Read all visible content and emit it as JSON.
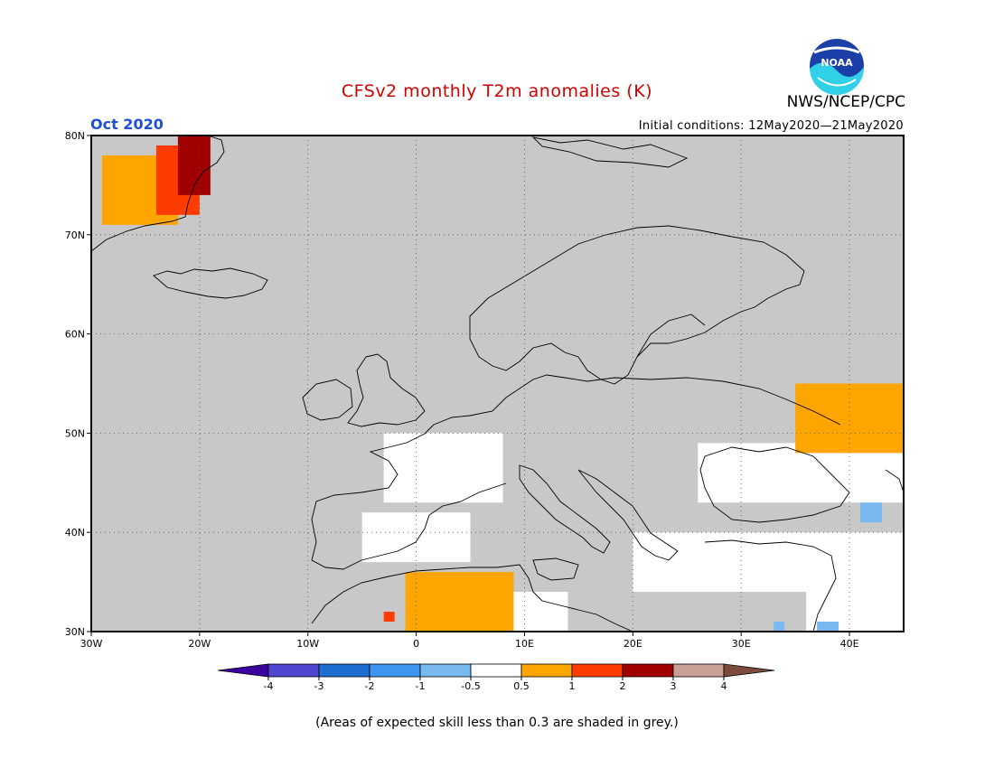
{
  "header": {
    "title": "CFSv2 monthly T2m anomalies (K)",
    "agency": "NWS/NCEP/CPC",
    "logo_text": "NOAA",
    "month": "Oct 2020",
    "initial_conditions": "Initial conditions: 12May2020—21May2020"
  },
  "map": {
    "region": "Europe",
    "lon_range": [
      -30,
      45
    ],
    "lat_range": [
      30,
      80
    ],
    "lon_ticks": [
      {
        "value": -30,
        "label": "30W"
      },
      {
        "value": -20,
        "label": "20W"
      },
      {
        "value": -10,
        "label": "10W"
      },
      {
        "value": 0,
        "label": "0"
      },
      {
        "value": 10,
        "label": "10E"
      },
      {
        "value": 20,
        "label": "20E"
      },
      {
        "value": 30,
        "label": "30E"
      },
      {
        "value": 40,
        "label": "40E"
      }
    ],
    "lat_ticks": [
      {
        "value": 30,
        "label": "30N"
      },
      {
        "value": 40,
        "label": "40N"
      },
      {
        "value": 50,
        "label": "50N"
      },
      {
        "value": 60,
        "label": "60N"
      },
      {
        "value": 70,
        "label": "70N"
      },
      {
        "value": 80,
        "label": "80N"
      }
    ],
    "low_skill_color": "#c8c8c8",
    "anomaly_regions": [
      {
        "name": "greenland-orange",
        "category": "0.5 to 1",
        "color": "#ffa500",
        "lon": [
          -29,
          -22
        ],
        "lat": [
          71,
          78
        ]
      },
      {
        "name": "greenland-red",
        "category": "1 to 2",
        "color": "#ff3c00",
        "lon": [
          -24,
          -20
        ],
        "lat": [
          72,
          79
        ]
      },
      {
        "name": "greenland-darkred",
        "category": "2 to 3",
        "color": "#a00000",
        "lon": [
          -22,
          -19
        ],
        "lat": [
          74,
          80
        ]
      },
      {
        "name": "russia-orange",
        "category": "0.5 to 1",
        "color": "#ffa500",
        "lon": [
          35,
          45
        ],
        "lat": [
          48,
          55
        ]
      },
      {
        "name": "north-africa-orange",
        "category": "0.5 to 1",
        "color": "#ffa500",
        "lon": [
          -1,
          9
        ],
        "lat": [
          30,
          36
        ]
      },
      {
        "name": "morocco-red",
        "category": "1 to 2",
        "color": "#ff3c00",
        "lon": [
          -3,
          -2
        ],
        "lat": [
          31,
          32
        ]
      },
      {
        "name": "caucasus-blue",
        "category": "-1 to -0.5",
        "color": "#78b9f0",
        "lon": [
          41,
          43
        ],
        "lat": [
          41,
          43
        ]
      },
      {
        "name": "levant-blue",
        "category": "-1 to -0.5",
        "color": "#78b9f0",
        "lon": [
          33,
          34
        ],
        "lat": [
          30,
          31
        ]
      },
      {
        "name": "arabia-blue",
        "category": "-1 to -0.5",
        "color": "#78b9f0",
        "lon": [
          37,
          39
        ],
        "lat": [
          30,
          31
        ]
      }
    ],
    "neutral_regions": [
      {
        "name": "france-white",
        "lon": [
          -3,
          8
        ],
        "lat": [
          43,
          50
        ]
      },
      {
        "name": "iberia-white",
        "lon": [
          -5,
          5
        ],
        "lat": [
          37,
          42
        ]
      },
      {
        "name": "ukraine-white",
        "lon": [
          26,
          45
        ],
        "lat": [
          43,
          49
        ]
      },
      {
        "name": "turkey-white",
        "lon": [
          20,
          45
        ],
        "lat": [
          34,
          40
        ]
      },
      {
        "name": "middle-east-white",
        "lon": [
          36,
          45
        ],
        "lat": [
          30,
          36
        ]
      },
      {
        "name": "sahara-white",
        "lon": [
          8,
          14
        ],
        "lat": [
          30,
          34
        ]
      }
    ]
  },
  "colorbar": {
    "labels": [
      "-4",
      "-3",
      "-2",
      "-1",
      "-0.5",
      "0.5",
      "1",
      "2",
      "3",
      "4"
    ],
    "colors": [
      "#3c00a0",
      "#5046d2",
      "#1e6ed2",
      "#3c96f0",
      "#78b9f0",
      "#ffffff",
      "#ffa500",
      "#ff3c00",
      "#a00000",
      "#c8a096",
      "#7d4b3c"
    ]
  },
  "footnote": "(Areas of expected skill less than 0.3 are shaded in grey.)"
}
